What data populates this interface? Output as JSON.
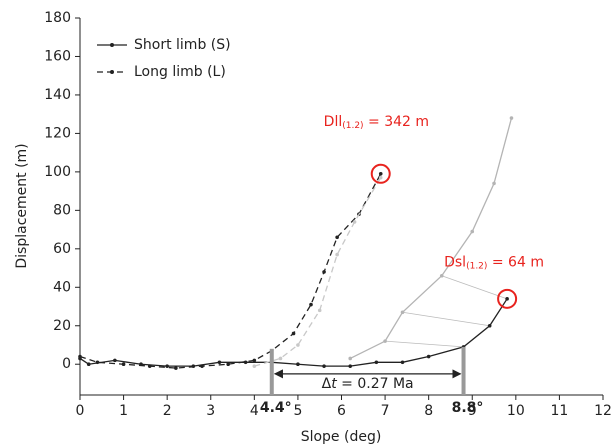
{
  "chart_data": {
    "type": "line",
    "xlabel": "Slope (deg)",
    "ylabel": "Displacement (m)",
    "xlim": [
      0,
      12
    ],
    "xticks": [
      0,
      1,
      2,
      3,
      4,
      5,
      6,
      7,
      8,
      9,
      10,
      11,
      12
    ],
    "ylim": [
      -16,
      180
    ],
    "yticks": [
      0,
      20,
      40,
      60,
      80,
      100,
      120,
      140,
      160,
      180
    ],
    "grid": false,
    "legend": "upper left",
    "series": [
      {
        "name": "Short limb (S)",
        "color": "#222222",
        "dash": false,
        "x": [
          0,
          0.2,
          0.8,
          1.4,
          2,
          2.6,
          3.2,
          3.8,
          4.4,
          5,
          5.6,
          6.2,
          6.8,
          7.4,
          8,
          8.8,
          9.4,
          9.8
        ],
        "values": [
          3,
          0,
          2,
          0,
          -1,
          -1,
          1,
          1,
          1,
          0,
          -1,
          -1,
          1,
          1,
          4,
          9,
          20,
          34
        ]
      },
      {
        "name": "Long limb (L)",
        "color": "#222222",
        "dash": true,
        "x": [
          0,
          0.4,
          1,
          1.6,
          2.2,
          2.8,
          3.4,
          4,
          4.4,
          4.9,
          5.3,
          5.6,
          5.9,
          6.4,
          6.9
        ],
        "values": [
          4,
          1,
          0,
          -1,
          -2,
          -1,
          0,
          2,
          7,
          16,
          31,
          48,
          66,
          78,
          99
        ]
      },
      {
        "color": "#c8c8c8",
        "dash": true,
        "x": [
          4,
          4.6,
          5,
          5.5,
          5.9,
          6.3,
          6.9
        ],
        "values": [
          -1,
          3,
          10,
          28,
          57,
          74,
          97
        ]
      },
      {
        "color": "#b4b4b4",
        "dash": false,
        "x": [
          6.2,
          7,
          7.4,
          8.3,
          9,
          9.5,
          9.9
        ],
        "values": [
          3,
          12,
          27,
          46,
          69,
          94,
          128
        ]
      }
    ],
    "markers": [
      {
        "x": 4.4,
        "top": 8,
        "label": "4.4°"
      },
      {
        "x": 8.8,
        "top": 9,
        "label": "8.8°"
      }
    ],
    "highlights": [
      {
        "x": 6.9,
        "y": 99
      },
      {
        "x": 9.8,
        "y": 34
      }
    ],
    "annotations": [
      {
        "main": "Dll",
        "sub": "(1.2)",
        "rest": " = 342 m",
        "x": 6.8,
        "y": 126
      },
      {
        "main": "Dsl",
        "sub": "(1.2)",
        "rest": " = 64 m",
        "x": 9.5,
        "y": 53
      }
    ],
    "interval": {
      "x1": 4.4,
      "x2": 8.8,
      "y": -5,
      "symbol": "Δ",
      "var": "t",
      "rest": " = 0.27 Ma"
    }
  }
}
